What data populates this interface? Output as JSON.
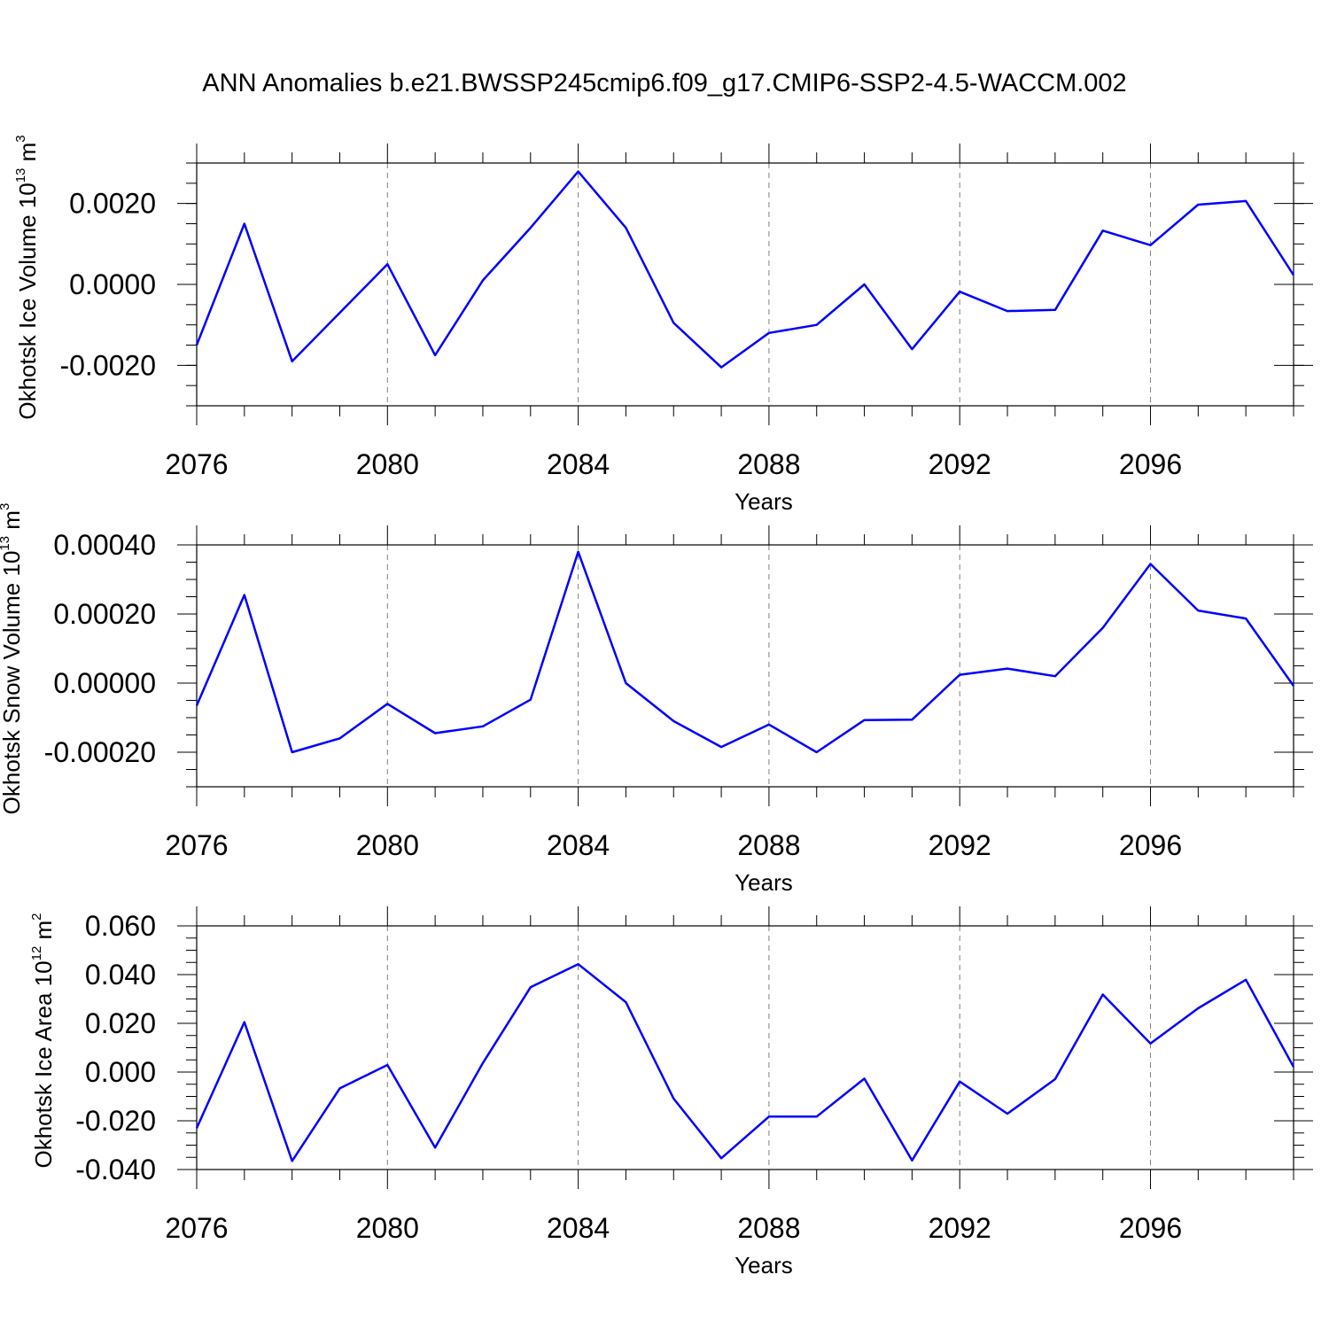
{
  "title": "ANN Anomalies b.e21.BWSSP245cmip6.f09_g17.CMIP6-SSP2-4.5-WACCM.002",
  "colors": {
    "line": "#0000ff",
    "axis": "#000000",
    "grid": "#808080"
  },
  "chart_data": [
    {
      "type": "line",
      "name": "ice-volume",
      "ylabel": {
        "text": "Okhotsk Ice Volume 10",
        "exp": "13",
        "unit": " m",
        "unit_exp": "3"
      },
      "xlabel": "Years",
      "xlim": [
        2076,
        2099
      ],
      "ylim": [
        -0.003,
        0.003
      ],
      "x_ticks": [
        2076,
        2080,
        2084,
        2088,
        2092,
        2096
      ],
      "x_tick_labels": [
        "2076",
        "2080",
        "2084",
        "2088",
        "2092",
        "2096"
      ],
      "y_ticks": [
        -0.002,
        0.0,
        0.002
      ],
      "y_tick_labels": [
        "-0.0020",
        "0.0000",
        "0.0020"
      ],
      "y_minor_step": 0.0005,
      "x": [
        2076,
        2077,
        2078,
        2079,
        2080,
        2081,
        2082,
        2083,
        2084,
        2085,
        2086,
        2087,
        2088,
        2089,
        2090,
        2091,
        2092,
        2093,
        2094,
        2095,
        2096,
        2097,
        2098,
        2099
      ],
      "values": [
        -0.0015,
        0.0015,
        -0.0019,
        -0.0007,
        0.0005,
        -0.00175,
        0.0001,
        0.0014,
        0.00279,
        0.0014,
        -0.00095,
        -0.00205,
        -0.0012,
        -0.001,
        0.0,
        -0.0016,
        -0.00018,
        -0.00066,
        -0.00063,
        0.00133,
        0.00097,
        0.00197,
        0.00206,
        0.00023
      ]
    },
    {
      "type": "line",
      "name": "snow-volume",
      "ylabel": {
        "text": "Okhotsk Snow Volume 10",
        "exp": "13",
        "unit": " m",
        "unit_exp": "3"
      },
      "xlabel": "Years",
      "xlim": [
        2076,
        2099
      ],
      "ylim": [
        -0.0003,
        0.0004
      ],
      "x_ticks": [
        2076,
        2080,
        2084,
        2088,
        2092,
        2096
      ],
      "x_tick_labels": [
        "2076",
        "2080",
        "2084",
        "2088",
        "2092",
        "2096"
      ],
      "y_ticks": [
        -0.0002,
        0.0,
        0.0002,
        0.0004
      ],
      "y_tick_labels": [
        "-0.00020",
        "0.00000",
        "0.00020",
        "0.00040"
      ],
      "y_minor_step": 5e-05,
      "x": [
        2076,
        2077,
        2078,
        2079,
        2080,
        2081,
        2082,
        2083,
        2084,
        2085,
        2086,
        2087,
        2088,
        2089,
        2090,
        2091,
        2092,
        2093,
        2094,
        2095,
        2096,
        2097,
        2098,
        2099
      ],
      "values": [
        -6.5e-05,
        0.000255,
        -0.0002,
        -0.00016,
        -6e-05,
        -0.000145,
        -0.000125,
        -4.8e-05,
        0.00038,
        0.0,
        -0.00011,
        -0.000185,
        -0.00012,
        -0.0002,
        -0.000107,
        -0.000106,
        2.4e-05,
        4.2e-05,
        2e-05,
        0.00016,
        0.000345,
        0.00021,
        0.000187,
        -8e-06
      ]
    },
    {
      "type": "line",
      "name": "ice-area",
      "ylabel": {
        "text": "Okhotsk Ice Area 10",
        "exp": "12",
        "unit": " m",
        "unit_exp": "2"
      },
      "xlabel": "Years",
      "xlim": [
        2076,
        2099
      ],
      "ylim": [
        -0.04,
        0.06
      ],
      "x_ticks": [
        2076,
        2080,
        2084,
        2088,
        2092,
        2096
      ],
      "x_tick_labels": [
        "2076",
        "2080",
        "2084",
        "2088",
        "2092",
        "2096"
      ],
      "y_ticks": [
        -0.04,
        -0.02,
        0.0,
        0.02,
        0.04,
        0.06
      ],
      "y_tick_labels": [
        "-0.040",
        "-0.020",
        "0.000",
        "0.020",
        "0.040",
        "0.060"
      ],
      "y_minor_step": 0.005,
      "x": [
        2076,
        2077,
        2078,
        2079,
        2080,
        2081,
        2082,
        2083,
        2084,
        2085,
        2086,
        2087,
        2088,
        2089,
        2090,
        2091,
        2092,
        2093,
        2094,
        2095,
        2096,
        2097,
        2098,
        2099
      ],
      "values": [
        -0.023,
        0.0205,
        -0.0365,
        -0.0067,
        0.0029,
        -0.031,
        0.0037,
        0.0348,
        0.0443,
        0.0287,
        -0.0109,
        -0.0354,
        -0.0183,
        -0.0183,
        -0.0027,
        -0.0363,
        -0.0039,
        -0.0171,
        -0.0029,
        0.0318,
        0.0117,
        0.0262,
        0.0379,
        0.0021
      ]
    }
  ]
}
